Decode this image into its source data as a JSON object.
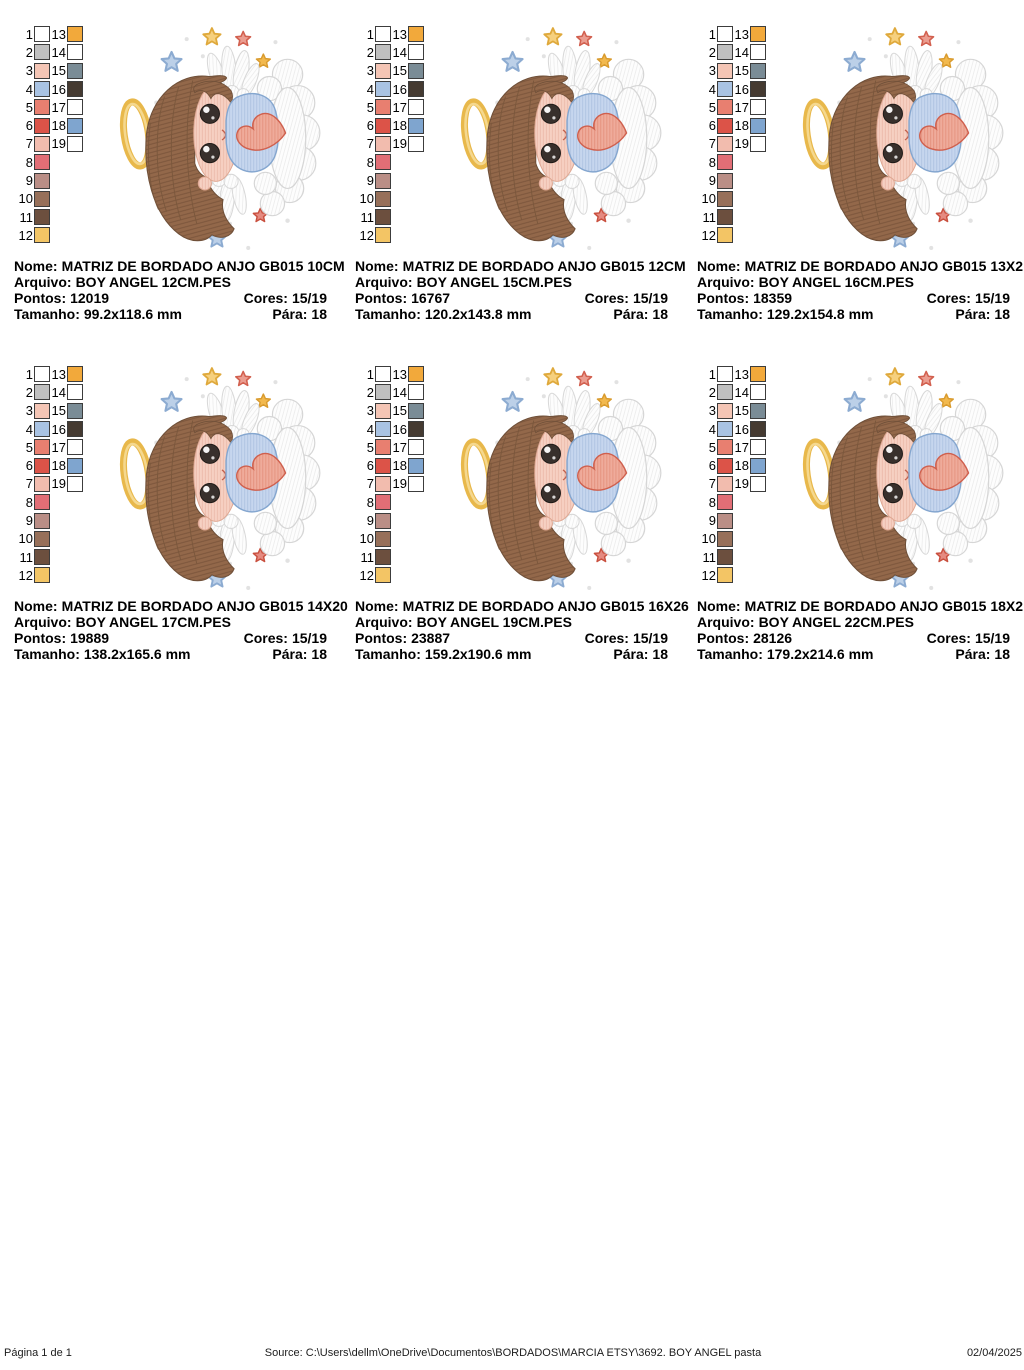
{
  "page": {
    "background": "#ffffff"
  },
  "labels": {
    "nome": "Nome:",
    "arquivo": "Arquivo:",
    "pontos": "Pontos:",
    "cores": "Cores:",
    "tamanho": "Tamanho:",
    "para": "Pára:"
  },
  "palette": {
    "threads": [
      {
        "n": "1",
        "color": "#ffffff"
      },
      {
        "n": "2",
        "color": "#c0c0c0"
      },
      {
        "n": "3",
        "color": "#f4c5b5"
      },
      {
        "n": "4",
        "color": "#a9c3e3"
      },
      {
        "n": "5",
        "color": "#e87f70"
      },
      {
        "n": "6",
        "color": "#dc5348"
      },
      {
        "n": "7",
        "color": "#f2bcae"
      },
      {
        "n": "8",
        "color": "#e26e76"
      },
      {
        "n": "9",
        "color": "#ba8e86"
      },
      {
        "n": "10",
        "color": "#97705a"
      },
      {
        "n": "11",
        "color": "#6c4f3e"
      },
      {
        "n": "12",
        "color": "#f3c565"
      },
      {
        "n": "13",
        "color": "#f2a93b"
      },
      {
        "n": "14",
        "color": "#ffffff"
      },
      {
        "n": "15",
        "color": "#7a8c96"
      },
      {
        "n": "16",
        "color": "#453a31"
      },
      {
        "n": "17",
        "color": "#ffffff"
      },
      {
        "n": "18",
        "color": "#7fa5cf"
      },
      {
        "n": "19",
        "color": "#ffffff"
      }
    ]
  },
  "panels": [
    {
      "nome": "MATRIZ DE BORDADO ANJO GB015 10CM",
      "arquivo": "BOY ANGEL 12CM.PES",
      "pontos": "12019",
      "cores": "15/19",
      "tamanho": "99.2x118.6 mm",
      "para": "18"
    },
    {
      "nome": "MATRIZ DE BORDADO ANJO GB015 12CM",
      "arquivo": "BOY ANGEL 15CM.PES",
      "pontos": "16767",
      "cores": "15/19",
      "tamanho": "120.2x143.8 mm",
      "para": "18"
    },
    {
      "nome": "MATRIZ DE BORDADO ANJO GB015 13X2",
      "arquivo": "BOY ANGEL 16CM.PES",
      "pontos": "18359",
      "cores": "15/19",
      "tamanho": "129.2x154.8 mm",
      "para": "18"
    },
    {
      "nome": "MATRIZ DE BORDADO ANJO GB015 14X20",
      "arquivo": "BOY ANGEL 17CM.PES",
      "pontos": "19889",
      "cores": "15/19",
      "tamanho": "138.2x165.6 mm",
      "para": "18"
    },
    {
      "nome": "MATRIZ DE BORDADO ANJO GB015 16X26",
      "arquivo": "BOY ANGEL 19CM.PES",
      "pontos": "23887",
      "cores": "15/19",
      "tamanho": "159.2x190.6 mm",
      "para": "18"
    },
    {
      "nome": "MATRIZ DE BORDADO ANJO GB015 18X2",
      "arquivo": "BOY ANGEL 22CM.PES",
      "pontos": "28126",
      "cores": "15/19",
      "tamanho": "179.2x214.6 mm",
      "para": "18"
    }
  ],
  "artwork": {
    "subject": "boy-angel-with-halo-heart-cloud-and-stars",
    "colors": {
      "hair": "#93684a",
      "skin": "#f6d0c2",
      "shirt": "#c6d6ee",
      "heart": "#efab9b",
      "halo": "#e8b84b",
      "cloud_wings": "#fdfdfd",
      "star_yellow": "#f6d07e",
      "star_red": "#eb9d90",
      "star_blue": "#bcd0e8",
      "star_gold": "#f2b94e"
    }
  },
  "footer": {
    "page_label": "Página 1 de 1",
    "source": "Source: C:\\Users\\dellm\\OneDrive\\Documentos\\BORDADOS\\MARCIA ETSY\\3692. BOY ANGEL pasta",
    "date": "02/04/2025"
  }
}
